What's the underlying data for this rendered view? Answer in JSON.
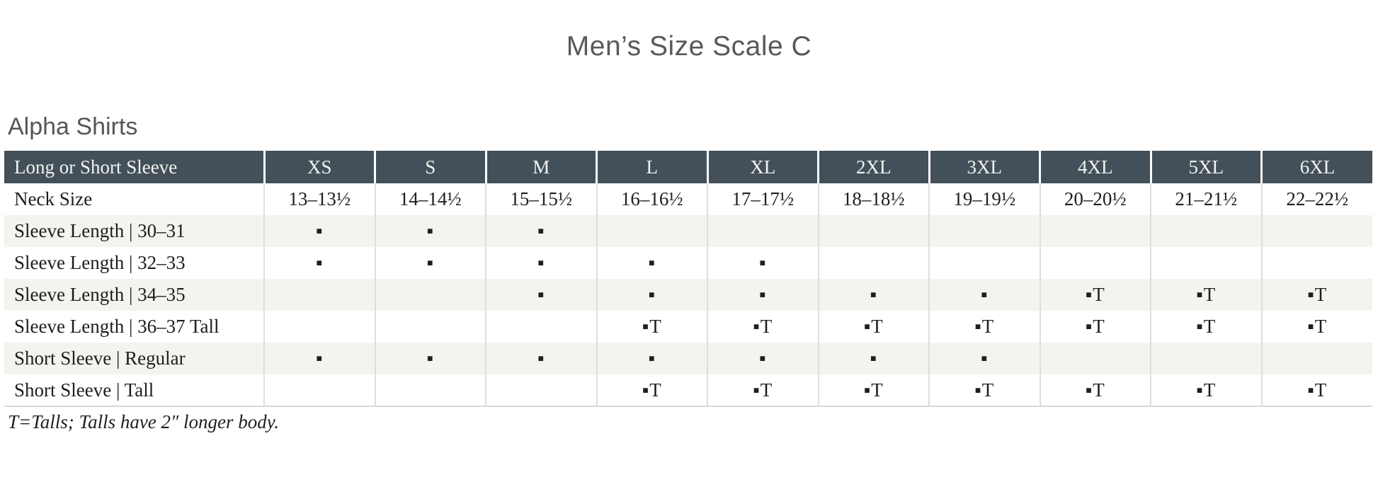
{
  "page": {
    "title": "Men’s Size Scale C",
    "section_heading": "Alpha Shirts",
    "footnote": "T=Talls; Talls have 2″ longer body."
  },
  "colors": {
    "header_bg": "#435059",
    "header_text": "#f2f3f1",
    "stripe_bg": "#f4f3f0",
    "grid_line": "#e0deda",
    "body_text": "#1e1e1c",
    "heading_text": "#55565a",
    "title_text": "#58595d"
  },
  "legend": {
    "available_mark": "▪",
    "tall_mark": "▪T"
  },
  "table": {
    "header": [
      "Long or Short Sleeve",
      "XS",
      "S",
      "M",
      "L",
      "XL",
      "2XL",
      "3XL",
      "4XL",
      "5XL",
      "6XL"
    ],
    "rows": [
      {
        "label": "Neck Size",
        "striped": false,
        "cells": [
          "13–13½",
          "14–14½",
          "15–15½",
          "16–16½",
          "17–17½",
          "18–18½",
          "19–19½",
          "20–20½",
          "21–21½",
          "22–22½"
        ]
      },
      {
        "label": "Sleeve Length  |  30–31",
        "striped": true,
        "cells": [
          "▪",
          "▪",
          "▪",
          "",
          "",
          "",
          "",
          "",
          "",
          ""
        ]
      },
      {
        "label": "Sleeve Length  |  32–33",
        "striped": false,
        "cells": [
          "▪",
          "▪",
          "▪",
          "▪",
          "▪",
          "",
          "",
          "",
          "",
          ""
        ]
      },
      {
        "label": "Sleeve Length  |  34–35",
        "striped": true,
        "cells": [
          "",
          "",
          "▪",
          "▪",
          "▪",
          "▪",
          "▪",
          "▪T",
          "▪T",
          "▪T"
        ]
      },
      {
        "label": "Sleeve Length  |  36–37 Tall",
        "striped": false,
        "cells": [
          "",
          "",
          "",
          "▪T",
          "▪T",
          "▪T",
          "▪T",
          "▪T",
          "▪T",
          "▪T"
        ]
      },
      {
        "label": "Short Sleeve  |  Regular",
        "striped": true,
        "cells": [
          "▪",
          "▪",
          "▪",
          "▪",
          "▪",
          "▪",
          "▪",
          "",
          "",
          ""
        ]
      },
      {
        "label": "Short Sleeve  |  Tall",
        "striped": false,
        "cells": [
          "",
          "",
          "",
          "▪T",
          "▪T",
          "▪T",
          "▪T",
          "▪T",
          "▪T",
          "▪T"
        ]
      }
    ]
  }
}
